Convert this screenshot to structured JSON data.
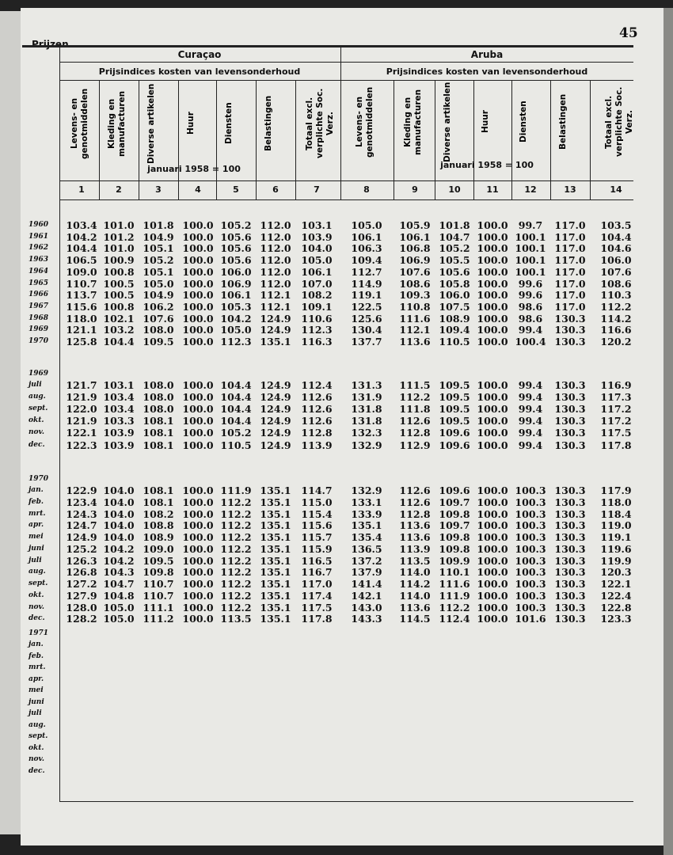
{
  "header": {
    "page_number": "45",
    "section": "Prijzen"
  },
  "table": {
    "groups": [
      "Curaçao",
      "Aruba"
    ],
    "subtitle": "Prijsindices kosten van levensonderhoud",
    "base": "januari 1958 = 100",
    "columns": [
      "Levens- en genotmiddelen",
      "Kleding en manufacturen",
      "Diverse artikelen",
      "Huur",
      "Diensten",
      "Belastingen",
      "Totaal excl. verplichte Soc. Verz."
    ],
    "column_numbers": [
      "1",
      "2",
      "3",
      "4",
      "5",
      "6",
      "7",
      "8",
      "9",
      "10",
      "11",
      "12",
      "13",
      "14"
    ],
    "sections": [
      {
        "labels": [
          "1960",
          "1961",
          "1962",
          "1963",
          "1964",
          "1965",
          "1966",
          "1967",
          "1968",
          "1969",
          "1970"
        ],
        "rows": [
          [
            "103.4",
            "101.0",
            "101.8",
            "100.0",
            "105.2",
            "112.0",
            "103.1",
            "105.0",
            "105.9",
            "101.8",
            "100.0",
            "99.7",
            "117.0",
            "103.5"
          ],
          [
            "104.2",
            "101.2",
            "104.9",
            "100.0",
            "105.6",
            "112.0",
            "103.9",
            "106.1",
            "106.1",
            "104.7",
            "100.0",
            "100.1",
            "117.0",
            "104.4"
          ],
          [
            "104.4",
            "101.0",
            "105.1",
            "100.0",
            "105.6",
            "112.0",
            "104.0",
            "106.3",
            "106.8",
            "105.2",
            "100.0",
            "100.1",
            "117.0",
            "104.6"
          ],
          [
            "106.5",
            "100.9",
            "105.2",
            "100.0",
            "105.6",
            "112.0",
            "105.0",
            "109.4",
            "106.9",
            "105.5",
            "100.0",
            "100.1",
            "117.0",
            "106.0"
          ],
          [
            "109.0",
            "100.8",
            "105.1",
            "100.0",
            "106.0",
            "112.0",
            "106.1",
            "112.7",
            "107.6",
            "105.6",
            "100.0",
            "100.1",
            "117.0",
            "107.6"
          ],
          [
            "110.7",
            "100.5",
            "105.0",
            "100.0",
            "106.9",
            "112.0",
            "107.0",
            "114.9",
            "108.6",
            "105.8",
            "100.0",
            "99.6",
            "117.0",
            "108.6"
          ],
          [
            "113.7",
            "100.5",
            "104.9",
            "100.0",
            "106.1",
            "112.1",
            "108.2",
            "119.1",
            "109.3",
            "106.0",
            "100.0",
            "99.6",
            "117.0",
            "110.3"
          ],
          [
            "115.6",
            "100.8",
            "106.2",
            "100.0",
            "105.3",
            "112.1",
            "109.1",
            "122.5",
            "110.8",
            "107.5",
            "100.0",
            "98.6",
            "117.0",
            "112.2"
          ],
          [
            "118.0",
            "102.1",
            "107.6",
            "100.0",
            "104.2",
            "124.9",
            "110.6",
            "125.6",
            "111.6",
            "108.9",
            "100.0",
            "98.6",
            "130.3",
            "114.2"
          ],
          [
            "121.1",
            "103.2",
            "108.0",
            "100.0",
            "105.0",
            "124.9",
            "112.3",
            "130.4",
            "112.1",
            "109.4",
            "100.0",
            "99.4",
            "130.3",
            "116.6"
          ],
          [
            "125.8",
            "104.4",
            "109.5",
            "100.0",
            "112.3",
            "135.1",
            "116.3",
            "137.7",
            "113.6",
            "110.5",
            "100.0",
            "100.4",
            "130.3",
            "120.2"
          ]
        ]
      },
      {
        "heading": "1969",
        "labels": [
          "juli",
          "aug.",
          "sept.",
          "okt.",
          "nov.",
          "dec."
        ],
        "rows": [
          [
            "121.7",
            "103.1",
            "108.0",
            "100.0",
            "104.4",
            "124.9",
            "112.4",
            "131.3",
            "111.5",
            "109.5",
            "100.0",
            "99.4",
            "130.3",
            "116.9"
          ],
          [
            "121.9",
            "103.4",
            "108.0",
            "100.0",
            "104.4",
            "124.9",
            "112.6",
            "131.9",
            "112.2",
            "109.5",
            "100.0",
            "99.4",
            "130.3",
            "117.3"
          ],
          [
            "122.0",
            "103.4",
            "108.0",
            "100.0",
            "104.4",
            "124.9",
            "112.6",
            "131.8",
            "111.8",
            "109.5",
            "100.0",
            "99.4",
            "130.3",
            "117.2"
          ],
          [
            "121.9",
            "103.3",
            "108.1",
            "100.0",
            "104.4",
            "124.9",
            "112.6",
            "131.8",
            "112.6",
            "109.5",
            "100.0",
            "99.4",
            "130.3",
            "117.2"
          ],
          [
            "122.1",
            "103.9",
            "108.1",
            "100.0",
            "105.2",
            "124.9",
            "112.8",
            "132.3",
            "112.8",
            "109.6",
            "100.0",
            "99.4",
            "130.3",
            "117.5"
          ],
          [
            "122.3",
            "103.9",
            "108.1",
            "100.0",
            "110.5",
            "124.9",
            "113.9",
            "132.9",
            "112.9",
            "109.6",
            "100.0",
            "99.4",
            "130.3",
            "117.8"
          ]
        ]
      },
      {
        "heading": "1970",
        "labels": [
          "jan.",
          "feb.",
          "mrt.",
          "apr.",
          "mei",
          "juni",
          "juli",
          "aug.",
          "sept.",
          "okt.",
          "nov.",
          "dec."
        ],
        "rows": [
          [
            "122.9",
            "104.0",
            "108.1",
            "100.0",
            "111.9",
            "135.1",
            "114.7",
            "132.9",
            "112.6",
            "109.6",
            "100.0",
            "100.3",
            "130.3",
            "117.9"
          ],
          [
            "123.4",
            "104.0",
            "108.1",
            "100.0",
            "112.2",
            "135.1",
            "115.0",
            "133.1",
            "112.6",
            "109.7",
            "100.0",
            "100.3",
            "130.3",
            "118.0"
          ],
          [
            "124.3",
            "104.0",
            "108.2",
            "100.0",
            "112.2",
            "135.1",
            "115.4",
            "133.9",
            "112.8",
            "109.8",
            "100.0",
            "100.3",
            "130.3",
            "118.4"
          ],
          [
            "124.7",
            "104.0",
            "108.8",
            "100.0",
            "112.2",
            "135.1",
            "115.6",
            "135.1",
            "113.6",
            "109.7",
            "100.0",
            "100.3",
            "130.3",
            "119.0"
          ],
          [
            "124.9",
            "104.0",
            "108.9",
            "100.0",
            "112.2",
            "135.1",
            "115.7",
            "135.4",
            "113.6",
            "109.8",
            "100.0",
            "100.3",
            "130.3",
            "119.1"
          ],
          [
            "125.2",
            "104.2",
            "109.0",
            "100.0",
            "112.2",
            "135.1",
            "115.9",
            "136.5",
            "113.9",
            "109.8",
            "100.0",
            "100.3",
            "130.3",
            "119.6"
          ],
          [
            "126.3",
            "104.2",
            "109.5",
            "100.0",
            "112.2",
            "135.1",
            "116.5",
            "137.2",
            "113.5",
            "109.9",
            "100.0",
            "100.3",
            "130.3",
            "119.9"
          ],
          [
            "126.8",
            "104.3",
            "109.8",
            "100.0",
            "112.2",
            "135.1",
            "116.7",
            "137.9",
            "114.0",
            "110.1",
            "100.0",
            "100.3",
            "130.3",
            "120.3"
          ],
          [
            "127.2",
            "104.7",
            "110.7",
            "100.0",
            "112.2",
            "135.1",
            "117.0",
            "141.4",
            "114.2",
            "111.6",
            "100.0",
            "100.3",
            "130.3",
            "122.1"
          ],
          [
            "127.9",
            "104.8",
            "110.7",
            "100.0",
            "112.2",
            "135.1",
            "117.4",
            "142.1",
            "114.0",
            "111.9",
            "100.0",
            "100.3",
            "130.3",
            "122.4"
          ],
          [
            "128.0",
            "105.0",
            "111.1",
            "100.0",
            "112.2",
            "135.1",
            "117.5",
            "143.0",
            "113.6",
            "112.2",
            "100.0",
            "100.3",
            "130.3",
            "122.8"
          ],
          [
            "128.2",
            "105.0",
            "111.2",
            "100.0",
            "113.5",
            "135.1",
            "117.8",
            "143.3",
            "114.5",
            "112.4",
            "100.0",
            "101.6",
            "130.3",
            "123.3"
          ]
        ]
      },
      {
        "heading": "1971",
        "labels": [
          "jan.",
          "feb.",
          "mrt.",
          "apr.",
          "mei",
          "juni",
          "juli",
          "aug.",
          "sept.",
          "okt.",
          "nov.",
          "dec."
        ]
      }
    ]
  }
}
